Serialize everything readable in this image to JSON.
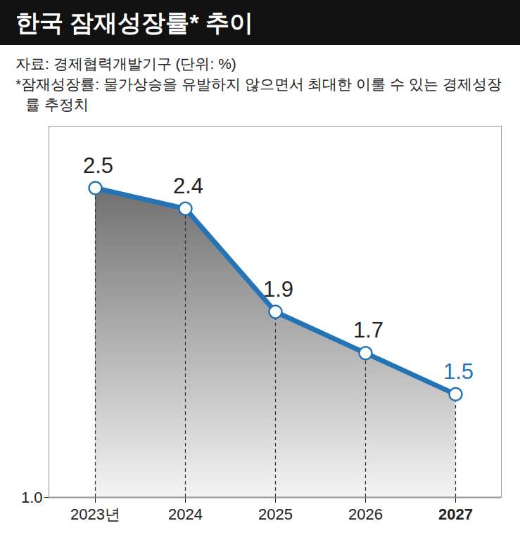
{
  "chart_data": {
    "type": "line",
    "title": "한국 잠재성장률* 추이",
    "source": "자료: 경제협력개발기구 (단위: %)",
    "note": "*잠재성장률: 물가상승을 유발하지 않으면서 최대한 이룰 수 있는 경제성장률 추정치",
    "categories": [
      "2023년",
      "2024",
      "2025",
      "2026",
      "2027"
    ],
    "values": [
      2.5,
      2.4,
      1.9,
      1.7,
      1.5
    ],
    "color": "#2474b5",
    "ylim": [
      1.0,
      2.8
    ],
    "yticks": [
      {
        "value": 1.0,
        "label": "1.0"
      }
    ],
    "data_labels": true,
    "marker": "circle",
    "grid": false
  }
}
